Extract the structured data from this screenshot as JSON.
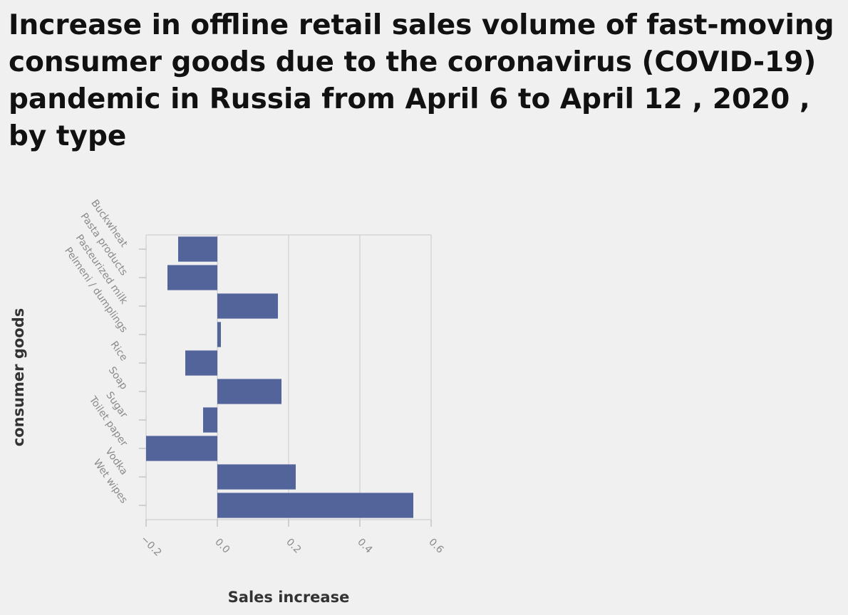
{
  "chart_data": {
    "type": "bar",
    "orientation": "horizontal",
    "title": "Increase in offline retail sales volume of fast-moving consumer goods due to the coronavirus (COVID-19) pandemic in Russia from April 6 to April 12 , 2020 , by type",
    "xlabel": "Sales increase",
    "ylabel": "consumer goods",
    "categories": [
      "Buckwheat",
      "Pasta products",
      "Pasteurized milk",
      "Pelmeni / dumplings",
      "Rice",
      "Soap",
      "Sugar",
      "Toilet paper",
      "Vodka",
      "Wet wipes"
    ],
    "values": [
      -0.11,
      -0.14,
      0.17,
      0.01,
      -0.09,
      0.18,
      -0.04,
      -0.2,
      0.22,
      0.55
    ],
    "x_ticks": [
      "−0.2",
      "0.0",
      "0.2",
      "0.4",
      "0.6"
    ],
    "xlim": [
      -0.2,
      0.6
    ],
    "grid": true,
    "bar_color": "#52649a"
  }
}
